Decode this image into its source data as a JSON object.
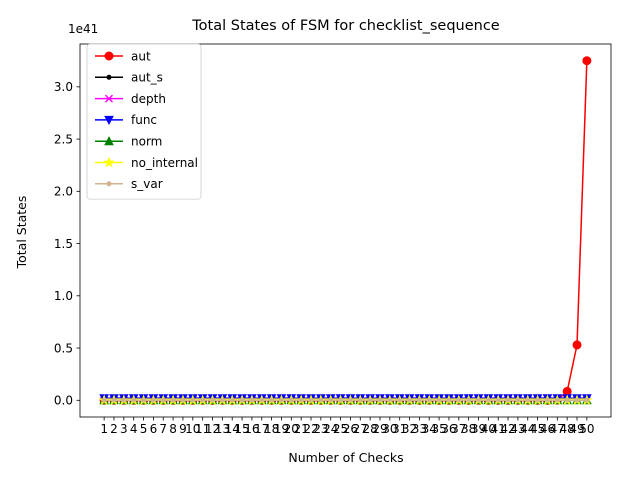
{
  "chart_data": {
    "type": "line",
    "title": "Total States of FSM for checklist_sequence",
    "xlabel": "Number of Checks",
    "ylabel": "Total States",
    "y_multiplier_label": "1e41",
    "y_scale_exponent": 41,
    "x": [
      1,
      2,
      3,
      4,
      5,
      6,
      7,
      8,
      9,
      10,
      11,
      12,
      13,
      14,
      15,
      16,
      17,
      18,
      19,
      20,
      21,
      22,
      23,
      24,
      25,
      26,
      27,
      28,
      29,
      30,
      31,
      32,
      33,
      34,
      35,
      36,
      37,
      38,
      39,
      40,
      41,
      42,
      43,
      44,
      45,
      46,
      47,
      48,
      49,
      50
    ],
    "xlim": [
      -1.45,
      52.45
    ],
    "ylim": [
      -0.16,
      3.41
    ],
    "yticks": [
      0.0,
      0.5,
      1.0,
      1.5,
      2.0,
      2.5,
      3.0
    ],
    "yticklabels": [
      "0.0",
      "0.5",
      "1.0",
      "1.5",
      "2.0",
      "2.5",
      "3.0"
    ],
    "grid": false,
    "legend_position": "upper-left",
    "series": [
      {
        "name": "aut",
        "color": "#ff0000",
        "marker": "circle",
        "values": [
          0,
          0,
          0,
          0,
          0,
          0,
          0,
          0,
          0,
          0,
          0,
          0,
          0,
          0,
          0,
          0,
          0,
          0,
          0,
          0,
          0,
          0,
          0,
          0,
          0,
          0,
          0,
          0,
          0,
          0,
          0,
          0,
          0,
          0,
          0,
          0,
          0,
          0,
          0,
          0,
          0,
          0,
          0,
          0,
          0,
          0.0001,
          0.0016,
          0.085,
          0.53,
          3.25
        ]
      },
      {
        "name": "aut_s",
        "color": "#000000",
        "marker": "point",
        "values": [
          0.02,
          0.02,
          0.02,
          0.02,
          0.02,
          0.02,
          0.02,
          0.02,
          0.02,
          0.02,
          0.02,
          0.02,
          0.02,
          0.02,
          0.02,
          0.02,
          0.02,
          0.02,
          0.02,
          0.02,
          0.02,
          0.02,
          0.02,
          0.02,
          0.02,
          0.02,
          0.02,
          0.02,
          0.02,
          0.02,
          0.02,
          0.02,
          0.02,
          0.02,
          0.02,
          0.02,
          0.02,
          0.02,
          0.02,
          0.02,
          0.02,
          0.02,
          0.02,
          0.02,
          0.02,
          0.02,
          0.02,
          0.02,
          0.02,
          0.02
        ]
      },
      {
        "name": "depth",
        "color": "#ff00ff",
        "marker": "x",
        "values": [
          0,
          0,
          0,
          0,
          0,
          0,
          0,
          0,
          0,
          0,
          0,
          0,
          0,
          0,
          0,
          0,
          0,
          0,
          0,
          0,
          0,
          0,
          0,
          0,
          0,
          0,
          0,
          0,
          0,
          0,
          0,
          0,
          0,
          0,
          0,
          0,
          0,
          0,
          0,
          0,
          0,
          0,
          0,
          0,
          0,
          0,
          0,
          0,
          0,
          0
        ]
      },
      {
        "name": "func",
        "color": "#0000ff",
        "marker": "triangle-down",
        "values": [
          0.02,
          0.02,
          0.02,
          0.02,
          0.02,
          0.02,
          0.02,
          0.02,
          0.02,
          0.02,
          0.02,
          0.02,
          0.02,
          0.02,
          0.02,
          0.02,
          0.02,
          0.02,
          0.02,
          0.02,
          0.02,
          0.02,
          0.02,
          0.02,
          0.02,
          0.02,
          0.02,
          0.02,
          0.02,
          0.02,
          0.02,
          0.02,
          0.02,
          0.02,
          0.02,
          0.02,
          0.02,
          0.02,
          0.02,
          0.02,
          0.02,
          0.02,
          0.02,
          0.02,
          0.02,
          0.02,
          0.02,
          0.02,
          0.02,
          0.02
        ]
      },
      {
        "name": "norm",
        "color": "#008000",
        "marker": "triangle-up",
        "values": [
          0,
          0,
          0,
          0,
          0,
          0,
          0,
          0,
          0,
          0,
          0,
          0,
          0,
          0,
          0,
          0,
          0,
          0,
          0,
          0,
          0,
          0,
          0,
          0,
          0,
          0,
          0,
          0,
          0,
          0,
          0,
          0,
          0,
          0,
          0,
          0,
          0,
          0,
          0,
          0,
          0,
          0,
          0,
          0,
          0,
          0,
          0,
          0,
          0,
          0
        ]
      },
      {
        "name": "no_internal",
        "color": "#ffff00",
        "marker": "star",
        "values": [
          0,
          0,
          0,
          0,
          0,
          0,
          0,
          0,
          0,
          0,
          0,
          0,
          0,
          0,
          0,
          0,
          0,
          0,
          0,
          0,
          0,
          0,
          0,
          0,
          0,
          0,
          0,
          0,
          0,
          0,
          0,
          0,
          0,
          0,
          0,
          0,
          0,
          0,
          0,
          0,
          0,
          0,
          0,
          0,
          0,
          0,
          0,
          0,
          0,
          0
        ]
      },
      {
        "name": "s_var",
        "color": "#d2b48c",
        "marker": "point",
        "values": [
          0,
          0,
          0,
          0,
          0,
          0,
          0,
          0,
          0,
          0,
          0,
          0,
          0,
          0,
          0,
          0,
          0,
          0,
          0,
          0,
          0,
          0,
          0,
          0,
          0,
          0,
          0,
          0,
          0,
          0,
          0,
          0,
          0,
          0,
          0,
          0,
          0,
          0,
          0,
          0,
          0,
          0,
          0,
          0,
          0,
          0,
          0,
          0,
          0,
          0
        ]
      }
    ]
  }
}
